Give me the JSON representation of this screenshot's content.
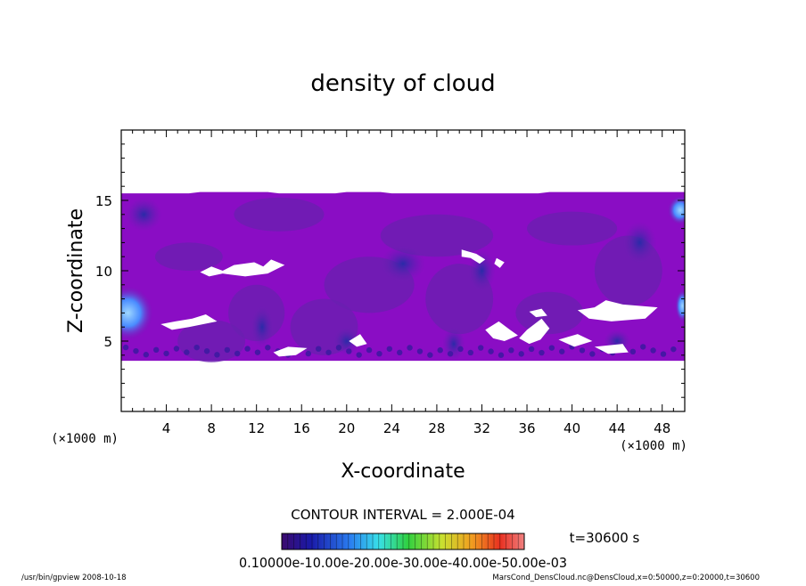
{
  "chart_data": {
    "type": "heatmap",
    "title": "density of cloud",
    "xlabel": "X-coordinate",
    "ylabel": "Z-coordinate",
    "x_unit": "(×1000 m)",
    "y_unit": "(×1000 m)",
    "xlim": [
      0,
      50
    ],
    "ylim": [
      0,
      20
    ],
    "x_ticks": [
      4,
      8,
      12,
      16,
      20,
      24,
      28,
      32,
      36,
      40,
      44,
      48
    ],
    "y_ticks": [
      5,
      10,
      15
    ],
    "contour_interval": "CONTOUR INTERVAL = 2.000E-04",
    "time_label": "t=30600 s",
    "colorbar_min": 0,
    "colorbar_max": 0.0011,
    "colorbar_labels_text": "0.10000e-10.00e-20.00e-30.00e-40.00e-50.00e-03",
    "cloud_layer": {
      "z_bottom": 3.6,
      "z_top": 15.5
    },
    "colors": {
      "background_field": "#8a0dc4",
      "mid_field": "#6a1fb0",
      "dark_field": "#3a1aa0",
      "blue_patch": "#2a4ee6",
      "light_blue": "#5aa8ff"
    },
    "footer_left": "/usr/bin/gpview  2008-10-18",
    "footer_right": "MarsCond_DensCloud.nc@DensCloud,x=0:50000,z=0:20000,t=30600"
  }
}
